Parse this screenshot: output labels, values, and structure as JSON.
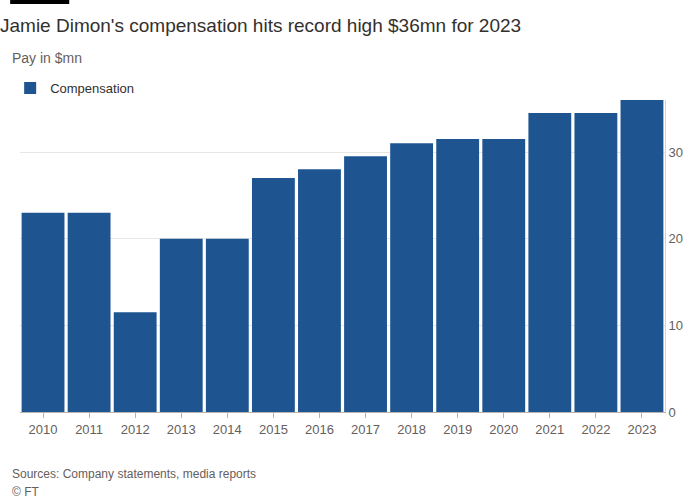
{
  "chart_data": {
    "type": "bar",
    "title": "Jamie Dimon's compensation hits record high $36mn for 2023",
    "subtitle": "Pay in $mn",
    "annotations": [
      "Sources: Company statements, media reports",
      "© FT"
    ],
    "categories": [
      "2010",
      "2011",
      "2012",
      "2013",
      "2014",
      "2015",
      "2016",
      "2017",
      "2018",
      "2019",
      "2020",
      "2021",
      "2022",
      "2023"
    ],
    "series": [
      {
        "name": "Compensation",
        "color": "#1e5490",
        "values": [
          23,
          23,
          11.5,
          20,
          20,
          27,
          28,
          29.5,
          31,
          31.5,
          31.5,
          34.5,
          34.5,
          36
        ]
      }
    ],
    "ylim": [
      0,
      36
    ],
    "yticks": [
      0,
      10,
      20,
      30
    ],
    "grid": true,
    "legend": "top-left"
  }
}
